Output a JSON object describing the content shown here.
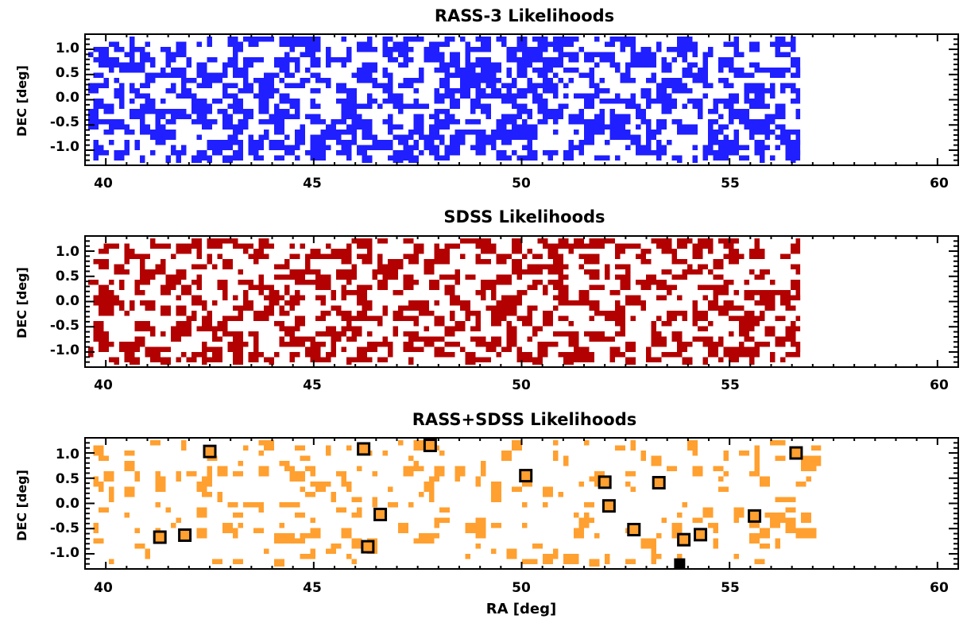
{
  "chart_data": [
    {
      "type": "heatmap",
      "title": "RASS-3 Likelihoods",
      "ylabel": "DEC [deg]",
      "xlabel": "",
      "xlim": [
        39.5,
        60.5
      ],
      "ylim": [
        -1.3,
        1.3
      ],
      "xticks": [
        "40",
        "45",
        "50",
        "55",
        "60"
      ],
      "yticks": [
        "1.0",
        "0.5",
        "0.0",
        "-0.5",
        "-1.0"
      ],
      "color": "#1f1fff",
      "data_extent_ra": [
        39.5,
        56.7
      ],
      "grid": false
    },
    {
      "type": "heatmap",
      "title": "SDSS Likelihoods",
      "ylabel": "DEC [deg]",
      "xlabel": "",
      "xlim": [
        39.5,
        60.5
      ],
      "ylim": [
        -1.3,
        1.3
      ],
      "xticks": [
        "40",
        "45",
        "50",
        "55",
        "60"
      ],
      "yticks": [
        "1.0",
        "0.5",
        "0.0",
        "-0.5",
        "-1.0"
      ],
      "color": "#b30000",
      "data_extent_ra": [
        39.5,
        56.7
      ],
      "grid": false
    },
    {
      "type": "heatmap",
      "title": "RASS+SDSS Likelihoods",
      "ylabel": "DEC [deg]",
      "xlabel": "RA [deg]",
      "xlim": [
        39.5,
        60.5
      ],
      "ylim": [
        -1.3,
        1.3
      ],
      "xticks": [
        "40",
        "45",
        "50",
        "55",
        "60"
      ],
      "yticks": [
        "1.0",
        "0.5",
        "0.0",
        "-0.5",
        "-1.0"
      ],
      "color": "#ffa030",
      "grid": false,
      "open_squares": [
        {
          "ra": 42.5,
          "dec": 1.03
        },
        {
          "ra": 46.2,
          "dec": 1.08
        },
        {
          "ra": 47.8,
          "dec": 1.15
        },
        {
          "ra": 50.1,
          "dec": 0.55
        },
        {
          "ra": 52.0,
          "dec": 0.42
        },
        {
          "ra": 53.3,
          "dec": 0.41
        },
        {
          "ra": 52.1,
          "dec": -0.05
        },
        {
          "ra": 46.6,
          "dec": -0.22
        },
        {
          "ra": 55.6,
          "dec": -0.25
        },
        {
          "ra": 52.7,
          "dec": -0.52
        },
        {
          "ra": 54.3,
          "dec": -0.62
        },
        {
          "ra": 53.9,
          "dec": -0.72
        },
        {
          "ra": 41.3,
          "dec": -0.67
        },
        {
          "ra": 41.9,
          "dec": -0.63
        },
        {
          "ra": 46.3,
          "dec": -0.86
        },
        {
          "ra": 56.6,
          "dec": 1.0
        }
      ],
      "filled_squares": [
        {
          "ra": 53.8,
          "dec": -1.2
        }
      ]
    }
  ]
}
